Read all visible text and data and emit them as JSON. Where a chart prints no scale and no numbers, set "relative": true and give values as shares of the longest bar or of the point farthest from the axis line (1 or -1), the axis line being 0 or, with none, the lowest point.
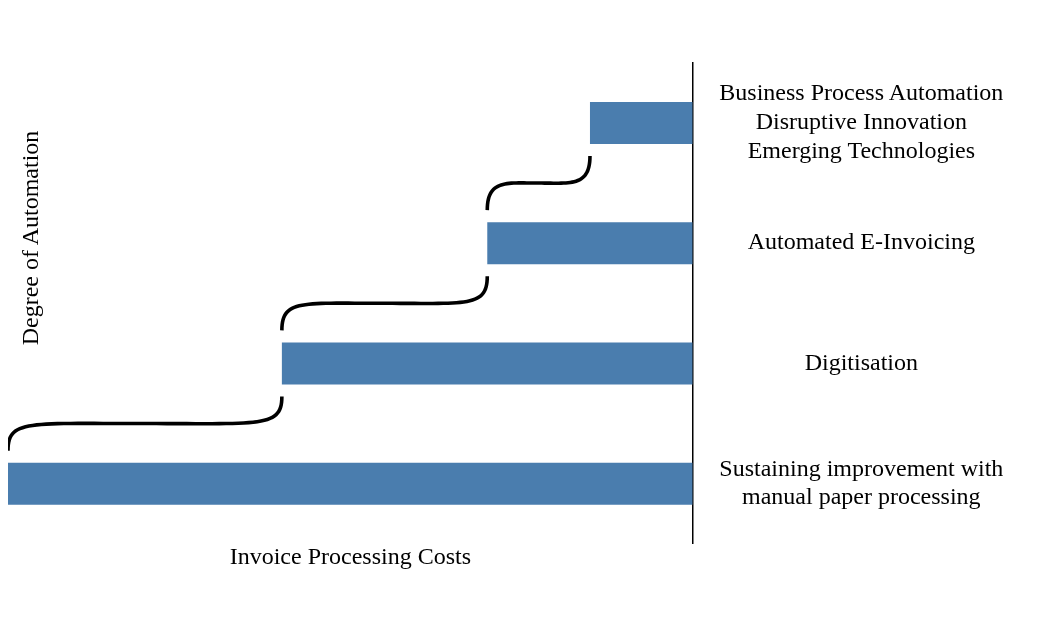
{
  "chart_data": {
    "type": "bar",
    "orientation": "horizontal",
    "relative": true,
    "xlabel": "Invoice Processing Costs",
    "ylabel": "Degree of Automation",
    "categories": [
      "Business Process Automation\nDisruptive Innovation\nEmerging Technologies",
      "Automated E-Invoicing",
      "Digitisation",
      "Sustaining improvement with\nmanual paper processing"
    ],
    "values": [
      -0.15,
      -0.3,
      -0.6,
      -1
    ],
    "color": "#4a7dae",
    "grid": false,
    "legend": false
  }
}
